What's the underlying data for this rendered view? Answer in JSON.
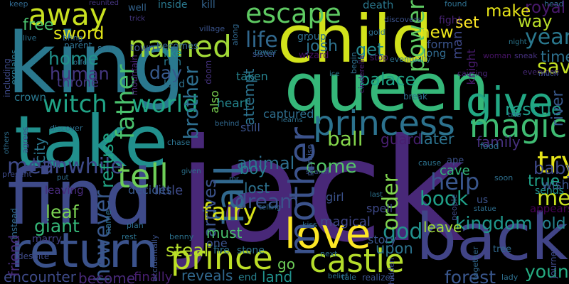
{
  "word_cloud": {
    "background": "#000000",
    "words": [
      {
        "text": "jack",
        "color": "#482878"
      },
      {
        "text": "child",
        "color": "#d2e21b"
      },
      {
        "text": "king",
        "color": "#2a788e"
      },
      {
        "text": "take",
        "color": "#21908d"
      },
      {
        "text": "find",
        "color": "#3e4a89"
      },
      {
        "text": "queen",
        "color": "#35b779"
      },
      {
        "text": "back",
        "color": "#414487"
      },
      {
        "text": "return",
        "color": "#3b528b"
      },
      {
        "text": "give",
        "color": "#22a884"
      },
      {
        "text": "princess",
        "color": "#2c728e"
      },
      {
        "text": "love",
        "color": "#fde725"
      },
      {
        "text": "castle",
        "color": "#b5de2b"
      },
      {
        "text": "prince",
        "color": "#bddf26"
      },
      {
        "text": "try",
        "color": "#e5e419"
      },
      {
        "text": "magic",
        "color": "#3fbc73"
      },
      {
        "text": "tell",
        "color": "#6ece58"
      },
      {
        "text": "mother",
        "color": "#3b528b"
      },
      {
        "text": "fall",
        "color": "#31688e"
      },
      {
        "text": "away",
        "color": "#c8e020"
      },
      {
        "text": "named",
        "color": "#a2da37"
      },
      {
        "text": "escape",
        "color": "#5ec962"
      },
      {
        "text": "world",
        "color": "#21a685"
      },
      {
        "text": "witch",
        "color": "#20a386"
      },
      {
        "text": "fairy",
        "color": "#d8e219"
      },
      {
        "text": "meet",
        "color": "#cae11f"
      },
      {
        "text": "help",
        "color": "#39568c"
      },
      {
        "text": "father",
        "color": "#4ac16d"
      },
      {
        "text": "save",
        "color": "#c2df23"
      },
      {
        "text": "year",
        "color": "#2a788e"
      },
      {
        "text": "power",
        "color": "#5ec962"
      },
      {
        "text": "life",
        "color": "#31688e"
      },
      {
        "text": "meanwhile",
        "color": "#3e4a89"
      },
      {
        "text": "however",
        "color": "#38588c"
      },
      {
        "text": "god",
        "color": "#21918c"
      },
      {
        "text": "book",
        "color": "#1fa088"
      },
      {
        "text": "kingdom",
        "color": "#1f978b"
      },
      {
        "text": "home",
        "color": "#20928c"
      },
      {
        "text": "steal",
        "color": "#b5de2b"
      },
      {
        "text": "young",
        "color": "#25ac82"
      },
      {
        "text": "forest",
        "color": "#39568c"
      },
      {
        "text": "way",
        "color": "#b8de29"
      },
      {
        "text": "royal",
        "color": "#48196b"
      },
      {
        "text": "rescue",
        "color": "#1e9c89"
      },
      {
        "text": "giant",
        "color": "#35b779"
      },
      {
        "text": "leaf",
        "color": "#7ad151"
      },
      {
        "text": "refuse",
        "color": "#21a685"
      },
      {
        "text": "animal",
        "color": "#2e6f8e"
      },
      {
        "text": "order",
        "color": "#7fd34e"
      },
      {
        "text": "come",
        "color": "#54c568"
      },
      {
        "text": "ball",
        "color": "#84d44b"
      },
      {
        "text": "dream",
        "color": "#3b528b"
      },
      {
        "text": "palace",
        "color": "#1fa187"
      },
      {
        "text": "baby",
        "color": "#3e4989"
      },
      {
        "text": "arrives",
        "color": "#3b528b"
      },
      {
        "text": "brother",
        "color": "#2e6e8e"
      },
      {
        "text": "day",
        "color": "#37598c"
      },
      {
        "text": "human",
        "color": "#453781"
      },
      {
        "text": "sword",
        "color": "#e2e418"
      },
      {
        "text": "free",
        "color": "#4ac16d"
      },
      {
        "text": "make",
        "color": "#e7e419"
      },
      {
        "text": "new",
        "color": "#ece51b"
      },
      {
        "text": "josh",
        "color": "#2d718e"
      },
      {
        "text": "get",
        "color": "#24868e"
      },
      {
        "text": "set",
        "color": "#fde725"
      },
      {
        "text": "time",
        "color": "#2d708e"
      },
      {
        "text": "true",
        "color": "#1fa188"
      },
      {
        "text": "river",
        "color": "#38598c"
      },
      {
        "text": "later",
        "color": "#2c728e"
      },
      {
        "text": "old",
        "color": "#26828e"
      },
      {
        "text": "leave",
        "color": "#a0da39"
      },
      {
        "text": "upon",
        "color": "#2c738e"
      },
      {
        "text": "boy",
        "color": "#277f8e"
      },
      {
        "text": "lost",
        "color": "#2d718e"
      },
      {
        "text": "must",
        "color": "#4ac16d"
      },
      {
        "text": "go",
        "color": "#6ece58"
      },
      {
        "text": "land",
        "color": "#21918c"
      },
      {
        "text": "family",
        "color": "#46307e"
      },
      {
        "text": "cave",
        "color": "#32b67a"
      },
      {
        "text": "guard",
        "color": "#481f70"
      },
      {
        "text": "magical",
        "color": "#3f4788"
      },
      {
        "text": "story",
        "color": "#3a548c"
      },
      {
        "text": "reveals",
        "color": "#31688e"
      },
      {
        "text": "encounter",
        "color": "#3e4a89"
      },
      {
        "text": "become",
        "color": "#482979"
      },
      {
        "text": "finally",
        "color": "#481f70"
      },
      {
        "text": "turn",
        "color": "#3f4889"
      },
      {
        "text": "city",
        "color": "#2a778e"
      },
      {
        "text": "friend",
        "color": "#472d7b"
      },
      {
        "text": "captured",
        "color": "#2e6e8e"
      },
      {
        "text": "attempt",
        "color": "#2c738e"
      },
      {
        "text": "still",
        "color": "#3b528b"
      },
      {
        "text": "taken",
        "color": "#26828e"
      },
      {
        "text": "heart",
        "color": "#24868e"
      },
      {
        "text": "also",
        "color": "#7ad151"
      },
      {
        "text": "throne",
        "color": "#443983"
      },
      {
        "text": "crown",
        "color": "#2a778e"
      },
      {
        "text": "little",
        "color": "#3e4a89"
      },
      {
        "text": "decides",
        "color": "#38598c"
      },
      {
        "text": "leaving",
        "color": "#472a7a"
      },
      {
        "text": "marry",
        "color": "#424086"
      },
      {
        "text": "one",
        "color": "#3b528b"
      },
      {
        "text": "fire",
        "color": "#2c728e"
      },
      {
        "text": "stone",
        "color": "#2c718e"
      },
      {
        "text": "end",
        "color": "#27808e"
      },
      {
        "text": "spell",
        "color": "#3e4989"
      },
      {
        "text": "girl",
        "color": "#3b528b"
      },
      {
        "text": "sends",
        "color": "#21918c"
      },
      {
        "text": "wish",
        "color": "#3a548c"
      },
      {
        "text": "appears",
        "color": "#440154"
      },
      {
        "text": "woman",
        "color": "#481467"
      },
      {
        "text": "man",
        "color": "#3e4989"
      },
      {
        "text": "fight",
        "color": "#482374"
      },
      {
        "text": "form",
        "color": "#3a548c"
      },
      {
        "text": "long",
        "color": "#306a8e"
      },
      {
        "text": "knight",
        "color": "#481b6d"
      },
      {
        "text": "death",
        "color": "#2a788e"
      },
      {
        "text": "group",
        "color": "#2e6e8e"
      },
      {
        "text": "kill",
        "color": "#33638d"
      },
      {
        "text": "son",
        "color": "#2e6f8e"
      },
      {
        "text": "town",
        "color": "#3a538b"
      },
      {
        "text": "well",
        "color": "#33638d"
      },
      {
        "text": "inside",
        "color": "#2a788e"
      },
      {
        "text": "becomes",
        "color": "#33638d"
      },
      {
        "text": "like",
        "color": "#21918c"
      },
      {
        "text": "run",
        "color": "#29798e"
      },
      {
        "text": "lead",
        "color": "#2d718e"
      },
      {
        "text": "mountain",
        "color": "#482575"
      },
      {
        "text": "doom",
        "color": "#46337f"
      },
      {
        "text": "keep",
        "color": "#31688e"
      },
      {
        "text": "explains",
        "color": "#2a788e"
      },
      {
        "text": "including",
        "color": "#3e4a89"
      },
      {
        "text": "live",
        "color": "#2c728e"
      },
      {
        "text": "parent",
        "color": "#2e6f8e"
      },
      {
        "text": "offer",
        "color": "#2e6e8e"
      },
      {
        "text": "bring",
        "color": "#32658e"
      },
      {
        "text": "reunited",
        "color": "#453581"
      },
      {
        "text": "trick",
        "color": "#453882"
      },
      {
        "text": "village",
        "color": "#3a548c"
      },
      {
        "text": "along",
        "color": "#31688e"
      },
      {
        "text": "sister",
        "color": "#3b528b"
      },
      {
        "text": "tower",
        "color": "#2c728e"
      },
      {
        "text": "wizard",
        "color": "#471164"
      },
      {
        "text": "begin",
        "color": "#2e6f8e"
      },
      {
        "text": "cinderella",
        "color": "#481f70"
      },
      {
        "text": "eventually",
        "color": "#2c728e"
      },
      {
        "text": "stop",
        "color": "#481b6d"
      },
      {
        "text": "gold",
        "color": "#2e6e8e"
      },
      {
        "text": "discovers",
        "color": "#3b528b"
      },
      {
        "text": "found",
        "color": "#2e6f8e"
      },
      {
        "text": "night",
        "color": "#2a768e"
      },
      {
        "text": "sneak",
        "color": "#46307e"
      },
      {
        "text": "causing",
        "color": "#482878"
      },
      {
        "text": "everyone",
        "color": "#482878"
      },
      {
        "text": "much",
        "color": "#3b528b"
      },
      {
        "text": "ice",
        "color": "#2a788e"
      },
      {
        "text": "break",
        "color": "#2e6e8e"
      },
      {
        "text": "trio",
        "color": "#31688e"
      },
      {
        "text": "food",
        "color": "#2c728e"
      },
      {
        "text": "others",
        "color": "#2e6e8e"
      },
      {
        "text": "discover",
        "color": "#2e6f8e"
      },
      {
        "text": "agrees",
        "color": "#3e4a89"
      },
      {
        "text": "chase",
        "color": "#2c728e"
      },
      {
        "text": "behind",
        "color": "#31688e"
      },
      {
        "text": "learns",
        "color": "#2e6f8e"
      },
      {
        "text": "promise",
        "color": "#3b528b"
      },
      {
        "text": "present",
        "color": "#3e4a89"
      },
      {
        "text": "put",
        "color": "#2e6f8e"
      },
      {
        "text": "given",
        "color": "#2c728e"
      },
      {
        "text": "mr",
        "color": "#31688e"
      },
      {
        "text": "telling",
        "color": "#2e6f8e"
      },
      {
        "text": "search",
        "color": "#3a548c"
      },
      {
        "text": "cause",
        "color": "#2c728e"
      },
      {
        "text": "ape",
        "color": "#3b528b"
      },
      {
        "text": "soon",
        "color": "#2e6f8e"
      },
      {
        "text": "last",
        "color": "#2c728e"
      },
      {
        "text": "people",
        "color": "#3e4a89"
      },
      {
        "text": "us",
        "color": "#3b528b"
      },
      {
        "text": "statue",
        "color": "#2e6e8e"
      },
      {
        "text": "together",
        "color": "#31688e"
      },
      {
        "text": "next",
        "color": "#2e6f8e"
      },
      {
        "text": "tale",
        "color": "#2c728e"
      },
      {
        "text": "hidden",
        "color": "#3e4a89"
      },
      {
        "text": "realizes",
        "color": "#3b528b"
      },
      {
        "text": "kiss",
        "color": "#2e6e8e"
      },
      {
        "text": "benny",
        "color": "#2c728e"
      },
      {
        "text": "despite",
        "color": "#3e4a89"
      },
      {
        "text": "instead",
        "color": "#31688e"
      },
      {
        "text": "plan",
        "color": "#2e6f8e"
      },
      {
        "text": "rest",
        "color": "#2c728e"
      },
      {
        "text": "accidentally",
        "color": "#3b528b"
      },
      {
        "text": "name",
        "color": "#2e6e8e"
      },
      {
        "text": "tree",
        "color": "#31688e"
      },
      {
        "text": "journey",
        "color": "#3e4a89"
      },
      {
        "text": "lady",
        "color": "#2e6f8e"
      },
      {
        "text": "head",
        "color": "#31688e"
      },
      {
        "text": "belief",
        "color": "#2c728e"
      }
    ]
  }
}
